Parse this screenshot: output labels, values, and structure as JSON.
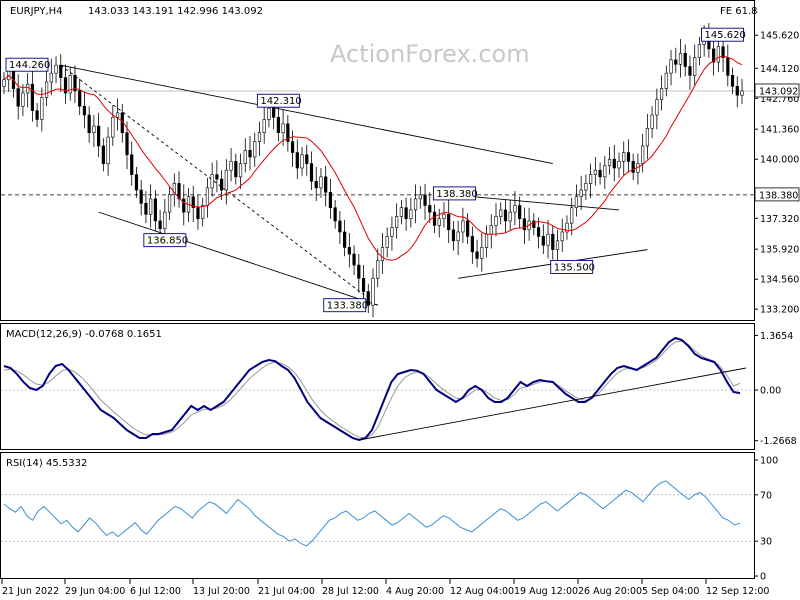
{
  "header": {
    "symbol": "EURJPY,H4",
    "ohlc": "143.033 143.191 142.996 143.092",
    "fe": "FE 61.8"
  },
  "watermark": "ActionForex.com",
  "colors": {
    "candle": "#000000",
    "ma": "#e00000",
    "macd": "#000080",
    "signal": "#999999",
    "trend": "#000000",
    "price_box_bg": "#ffffff",
    "label_box_border": "#000080"
  },
  "chart_data": [
    {
      "type": "candlestick",
      "title": "",
      "ylim": [
        132.8,
        146.4
      ],
      "y_ticks": [
        "145.620",
        "144.120",
        "142.760",
        "141.360",
        "140.000",
        "138.380",
        "137.320",
        "135.920",
        "134.560",
        "133.200"
      ],
      "current_price": "143.092",
      "levels": [
        {
          "label": "138.380",
          "value": 138.38,
          "style": "dashed"
        }
      ],
      "x_labels": [
        "21 Jun 2022",
        "29 Jun 04:00",
        "6 Jul 12:00",
        "13 Jul 20:00",
        "21 Jul 04:00",
        "28 Jul 12:00",
        "4 Aug 20:00",
        "12 Aug 04:00",
        "19 Aug 12:00",
        "26 Aug 20:00",
        "5 Sep 04:00",
        "12 Sep 12:00"
      ],
      "annotations": [
        {
          "label": "144.260",
          "x_index": 12,
          "value": 144.26
        },
        {
          "label": "142.310",
          "x_index": 58,
          "value": 142.31
        },
        {
          "label": "136.850",
          "x_index": 34,
          "value": 136.85
        },
        {
          "label": "133.380",
          "x_index": 79,
          "value": 133.38
        },
        {
          "label": "138.380",
          "x_index": 95,
          "value": 138.38
        },
        {
          "label": "135.500",
          "x_index": 120,
          "value": 135.5
        },
        {
          "label": "145.620",
          "x_index": 158,
          "value": 145.62
        }
      ],
      "series_close": [
        143.6,
        144.0,
        143.2,
        142.4,
        143.0,
        143.4,
        142.2,
        141.8,
        142.8,
        143.5,
        143.9,
        144.26,
        143.7,
        143.0,
        143.8,
        143.1,
        142.4,
        142.0,
        141.2,
        141.5,
        140.6,
        139.8,
        141.0,
        141.9,
        142.1,
        141.2,
        140.2,
        139.3,
        138.6,
        138.0,
        137.5,
        138.2,
        137.2,
        136.85,
        137.6,
        138.4,
        138.9,
        138.2,
        137.6,
        138.3,
        137.8,
        137.3,
        137.9,
        138.7,
        139.3,
        139.1,
        138.6,
        139.5,
        139.9,
        139.2,
        139.8,
        140.4,
        140.1,
        140.8,
        141.2,
        141.8,
        142.31,
        141.9,
        141.2,
        141.6,
        140.8,
        140.3,
        139.6,
        140.2,
        139.8,
        139.0,
        138.7,
        139.2,
        138.5,
        137.8,
        137.2,
        136.7,
        136.0,
        135.7,
        135.2,
        134.6,
        134.0,
        133.38,
        134.6,
        135.4,
        136.0,
        136.5,
        136.9,
        137.4,
        137.8,
        137.3,
        137.7,
        138.2,
        138.38,
        137.9,
        137.6,
        137.0,
        137.3,
        137.5,
        136.8,
        136.3,
        136.7,
        137.2,
        136.5,
        135.8,
        135.5,
        136.0,
        136.6,
        137.0,
        137.4,
        137.7,
        137.2,
        137.6,
        137.9,
        137.3,
        136.8,
        137.2,
        136.9,
        136.5,
        136.1,
        136.6,
        135.9,
        136.3,
        136.7,
        137.1,
        137.8,
        138.3,
        138.6,
        138.9,
        139.3,
        139.5,
        139.2,
        139.7,
        140.0,
        139.6,
        139.9,
        140.3,
        139.9,
        139.4,
        139.8,
        140.6,
        141.4,
        142.0,
        142.7,
        143.2,
        143.9,
        144.5,
        144.3,
        144.8,
        144.2,
        143.8,
        144.6,
        145.2,
        145.62,
        145.0,
        144.4,
        145.1,
        144.6,
        143.8,
        143.3,
        142.9,
        143.092
      ],
      "ma_label": "",
      "range_low_index": 77
    },
    {
      "type": "line",
      "title": "MACD(12,26,9) -0.0768 0.1651",
      "ylim": [
        -1.45,
        1.5
      ],
      "y_ticks": [
        "1.3654",
        "0.00",
        "-1.2668"
      ],
      "series": [
        {
          "name": "MACD",
          "values": [
            0.6,
            0.55,
            0.4,
            0.2,
            0.05,
            0.0,
            0.1,
            0.4,
            0.6,
            0.65,
            0.5,
            0.3,
            0.1,
            -0.1,
            -0.3,
            -0.5,
            -0.6,
            -0.7,
            -0.85,
            -1.0,
            -1.1,
            -1.2,
            -1.2,
            -1.1,
            -1.1,
            -1.05,
            -1.0,
            -0.8,
            -0.6,
            -0.4,
            -0.5,
            -0.4,
            -0.5,
            -0.4,
            -0.3,
            -0.1,
            0.1,
            0.3,
            0.5,
            0.6,
            0.7,
            0.75,
            0.72,
            0.6,
            0.5,
            0.3,
            0.0,
            -0.3,
            -0.5,
            -0.7,
            -0.8,
            -0.9,
            -1.0,
            -1.1,
            -1.2,
            -1.25,
            -1.2,
            -1.0,
            -0.6,
            -0.2,
            0.2,
            0.4,
            0.45,
            0.5,
            0.48,
            0.4,
            0.2,
            0.0,
            -0.1,
            -0.2,
            -0.3,
            -0.2,
            0.0,
            0.1,
            0.0,
            -0.2,
            -0.3,
            -0.3,
            -0.2,
            0.0,
            0.2,
            0.1,
            0.2,
            0.25,
            0.22,
            0.2,
            0.05,
            -0.1,
            -0.2,
            -0.3,
            -0.3,
            -0.2,
            0.0,
            0.2,
            0.4,
            0.55,
            0.6,
            0.55,
            0.5,
            0.6,
            0.7,
            0.8,
            1.0,
            1.2,
            1.3,
            1.25,
            1.1,
            0.9,
            0.8,
            0.75,
            0.7,
            0.5,
            0.2,
            -0.05,
            -0.0768
          ]
        },
        {
          "name": "Signal",
          "values": [
            0.5,
            0.52,
            0.48,
            0.38,
            0.25,
            0.15,
            0.12,
            0.2,
            0.35,
            0.48,
            0.52,
            0.45,
            0.32,
            0.15,
            -0.05,
            -0.25,
            -0.4,
            -0.55,
            -0.68,
            -0.82,
            -0.95,
            -1.05,
            -1.12,
            -1.13,
            -1.12,
            -1.1,
            -1.05,
            -0.95,
            -0.8,
            -0.62,
            -0.55,
            -0.48,
            -0.48,
            -0.45,
            -0.38,
            -0.25,
            -0.08,
            0.1,
            0.28,
            0.42,
            0.55,
            0.65,
            0.7,
            0.66,
            0.58,
            0.44,
            0.22,
            -0.05,
            -0.3,
            -0.5,
            -0.66,
            -0.78,
            -0.9,
            -1.0,
            -1.1,
            -1.18,
            -1.2,
            -1.12,
            -0.9,
            -0.55,
            -0.2,
            0.1,
            0.3,
            0.4,
            0.45,
            0.42,
            0.3,
            0.15,
            0.02,
            -0.1,
            -0.2,
            -0.22,
            -0.12,
            0.0,
            0.02,
            -0.08,
            -0.2,
            -0.26,
            -0.24,
            -0.12,
            0.05,
            0.08,
            0.14,
            0.2,
            0.22,
            0.2,
            0.1,
            -0.02,
            -0.12,
            -0.22,
            -0.26,
            -0.22,
            -0.1,
            0.08,
            0.26,
            0.42,
            0.52,
            0.54,
            0.52,
            0.56,
            0.64,
            0.74,
            0.9,
            1.08,
            1.2,
            1.22,
            1.14,
            0.98,
            0.86,
            0.78,
            0.72,
            0.58,
            0.36,
            0.1,
            0.1651
          ]
        }
      ],
      "trendline_label": ""
    },
    {
      "type": "line",
      "title": "RSI(14) 45.5332",
      "ylim": [
        0,
        100
      ],
      "y_ticks": [
        "100",
        "70",
        "30",
        "0"
      ],
      "series": [
        {
          "name": "RSI",
          "values": [
            62,
            58,
            55,
            60,
            52,
            48,
            56,
            60,
            55,
            50,
            45,
            48,
            42,
            38,
            44,
            50,
            46,
            40,
            35,
            38,
            34,
            38,
            42,
            46,
            40,
            36,
            42,
            48,
            52,
            56,
            60,
            58,
            54,
            50,
            56,
            60,
            64,
            62,
            58,
            54,
            60,
            66,
            62,
            58,
            52,
            48,
            44,
            40,
            36,
            34,
            30,
            32,
            28,
            26,
            30,
            36,
            42,
            48,
            50,
            54,
            56,
            52,
            48,
            50,
            54,
            56,
            52,
            48,
            44,
            46,
            50,
            54,
            50,
            46,
            42,
            44,
            48,
            52,
            50,
            46,
            42,
            40,
            38,
            42,
            46,
            50,
            54,
            58,
            56,
            52,
            48,
            50,
            54,
            58,
            62,
            64,
            60,
            56,
            60,
            64,
            68,
            72,
            70,
            66,
            62,
            58,
            62,
            66,
            70,
            74,
            72,
            68,
            64,
            70,
            76,
            80,
            82,
            78,
            74,
            70,
            66,
            70,
            72,
            68,
            62,
            56,
            50,
            48,
            44,
            45.5332
          ]
        }
      ]
    }
  ]
}
